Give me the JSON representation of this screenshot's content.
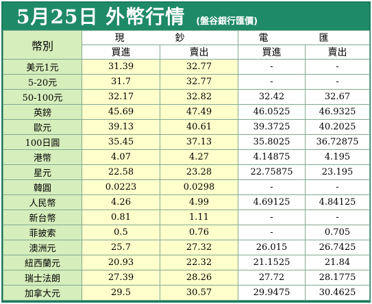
{
  "title": "5月25日 外幣行情",
  "subtitle": "(盤谷銀行匯價)",
  "headers": {
    "currency": "幣別",
    "cash": "現　鈔",
    "wire": "電　匯",
    "buy": "買進",
    "sell": "賣出"
  },
  "rows": [
    {
      "name": "美元1元",
      "cash_buy": "31.39",
      "cash_sell": "32.77",
      "wire_buy": "-",
      "wire_sell": "-"
    },
    {
      "name": "5-20元",
      "cash_buy": "31.7",
      "cash_sell": "32.77",
      "wire_buy": "-",
      "wire_sell": "-"
    },
    {
      "name": "50-100元",
      "cash_buy": "32.17",
      "cash_sell": "32.82",
      "wire_buy": "32.42",
      "wire_sell": "32.67"
    },
    {
      "name": "英鎊",
      "cash_buy": "45.69",
      "cash_sell": "47.49",
      "wire_buy": "46.0525",
      "wire_sell": "46.9325"
    },
    {
      "name": "歐元",
      "cash_buy": "39.13",
      "cash_sell": "40.61",
      "wire_buy": "39.3725",
      "wire_sell": "40.2025"
    },
    {
      "name": "100日圓",
      "cash_buy": "35.45",
      "cash_sell": "37.13",
      "wire_buy": "35.8025",
      "wire_sell": "36.72875"
    },
    {
      "name": "港幣",
      "cash_buy": "4.07",
      "cash_sell": "4.27",
      "wire_buy": "4.14875",
      "wire_sell": "4.195"
    },
    {
      "name": "星元",
      "cash_buy": "22.58",
      "cash_sell": "23.28",
      "wire_buy": "22.75875",
      "wire_sell": "23.195"
    },
    {
      "name": "韓圓",
      "cash_buy": "0.0223",
      "cash_sell": "0.0298",
      "wire_buy": "-",
      "wire_sell": "-"
    },
    {
      "name": "人民幣",
      "cash_buy": "4.26",
      "cash_sell": "4.99",
      "wire_buy": "4.69125",
      "wire_sell": "4.84125"
    },
    {
      "name": "新台幣",
      "cash_buy": "0.81",
      "cash_sell": "1.11",
      "wire_buy": "-",
      "wire_sell": "-"
    },
    {
      "name": "菲披索",
      "cash_buy": "0.5",
      "cash_sell": "0.76",
      "wire_buy": "-",
      "wire_sell": "0.705"
    },
    {
      "name": "澳洲元",
      "cash_buy": "25.7",
      "cash_sell": "27.32",
      "wire_buy": "26.015",
      "wire_sell": "26.7425"
    },
    {
      "name": "紐西蘭元",
      "cash_buy": "20.93",
      "cash_sell": "22.32",
      "wire_buy": "21.1525",
      "wire_sell": "21.84"
    },
    {
      "name": "瑞士法朗",
      "cash_buy": "27.39",
      "cash_sell": "28.26",
      "wire_buy": "27.72",
      "wire_sell": "28.1775"
    },
    {
      "name": "加拿大元",
      "cash_buy": "29.5",
      "cash_sell": "30.57",
      "wire_buy": "29.9475",
      "wire_sell": "30.4625"
    }
  ],
  "colors": {
    "header_bg": "#1f8a68",
    "name_bg": "#d6eebc",
    "cash_bg": "#ffffcc",
    "wire_bg": "#ffffff"
  }
}
